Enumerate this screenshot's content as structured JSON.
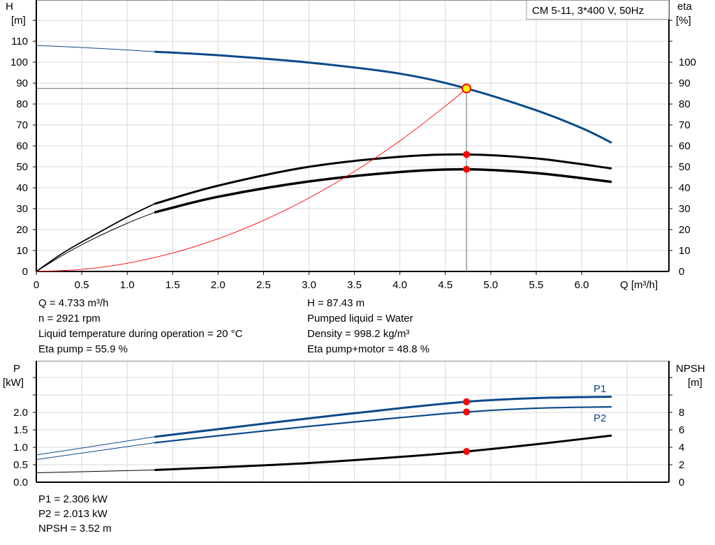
{
  "chart_data": [
    {
      "type": "line",
      "title": "CM 5-11, 3*400 V, 50Hz",
      "xlabel": "Q [m³/h]",
      "ylabel_left": [
        "H",
        "[m]"
      ],
      "ylabel_right": [
        "eta",
        "[%]"
      ],
      "xlim": [
        0,
        6.96
      ],
      "ylim_left": [
        0,
        129.7
      ],
      "ylim_right": [
        0,
        129.7
      ],
      "grid": true,
      "x_ticks": [
        "0",
        "0.5",
        "1.0",
        "1.5",
        "2.0",
        "2.5",
        "3.0",
        "3.5",
        "4.0",
        "4.5",
        "5.0",
        "5.5",
        "6.0"
      ],
      "y_ticks_left": [
        "0",
        "10",
        "20",
        "30",
        "40",
        "50",
        "60",
        "70",
        "80",
        "90",
        "100",
        "110"
      ],
      "y_ticks_right": [
        "0",
        "10",
        "20",
        "30",
        "40",
        "50",
        "60",
        "70",
        "80",
        "90",
        "100"
      ],
      "series": [
        {
          "key": "H",
          "color": "#0a4a8a",
          "thick_from": 1.3,
          "points": [
            [
              0,
              108
            ],
            [
              0.5,
              107
            ],
            [
              1.0,
              105.8
            ],
            [
              1.3,
              105
            ],
            [
              2.0,
              103.3
            ],
            [
              3.0,
              99.8
            ],
            [
              4.0,
              94.5
            ],
            [
              4.733,
              87.43
            ],
            [
              5.5,
              77
            ],
            [
              6.0,
              68.5
            ],
            [
              6.33,
              61.5
            ]
          ]
        },
        {
          "key": "eta_pump",
          "color": "#000000",
          "thick_from": 1.3,
          "thin_width": 1.8,
          "points": [
            [
              0,
              0
            ],
            [
              0.3,
              9
            ],
            [
              0.6,
              16.5
            ],
            [
              1.0,
              26
            ],
            [
              1.3,
              32.3
            ],
            [
              2.0,
              41
            ],
            [
              3.0,
              50
            ],
            [
              4.0,
              54.8
            ],
            [
              4.733,
              55.9
            ],
            [
              5.5,
              54
            ],
            [
              6.33,
              49.2
            ]
          ]
        },
        {
          "key": "eta_pump_motor",
          "color": "#000000",
          "thick_from": 1.3,
          "thick_width": 3.5,
          "points": [
            [
              0,
              0
            ],
            [
              0.3,
              8
            ],
            [
              0.6,
              15
            ],
            [
              1.0,
              23
            ],
            [
              1.3,
              28.2
            ],
            [
              2.0,
              35.7
            ],
            [
              3.0,
              43
            ],
            [
              4.0,
              47.5
            ],
            [
              4.733,
              48.8
            ],
            [
              5.5,
              47
            ],
            [
              6.33,
              42.8
            ]
          ]
        },
        {
          "key": "system_curve",
          "color": "#ff0000",
          "thin_only": true,
          "points": [
            [
              0,
              0
            ],
            [
              0.5,
              0.98
            ],
            [
              1.0,
              3.9
            ],
            [
              1.5,
              8.8
            ],
            [
              2.0,
              15.6
            ],
            [
              2.5,
              24.4
            ],
            [
              3.0,
              35.1
            ],
            [
              3.5,
              47.8
            ],
            [
              4.0,
              62.4
            ],
            [
              4.5,
              79
            ],
            [
              4.733,
              87.43
            ]
          ]
        }
      ],
      "operating_point": {
        "Q": 4.733,
        "H": 87.43,
        "eta_pump": 55.9,
        "eta_pump_motor": 48.8
      }
    },
    {
      "type": "line",
      "xlim": [
        0,
        6.96
      ],
      "ylabel_left": [
        "P",
        "[kW]"
      ],
      "ylabel_right": [
        "NPSH",
        "[m]"
      ],
      "ylim_left": [
        0,
        3.48
      ],
      "ylim_right": [
        0,
        13.92
      ],
      "grid": true,
      "y_ticks_left": [
        "0.0",
        "0.5",
        "1.0",
        "1.5",
        "2.0"
      ],
      "y_ticks_right": [
        "0",
        "2",
        "4",
        "6",
        "8"
      ],
      "series": [
        {
          "key": "P1",
          "name": "P1",
          "color": "#0a4a8a",
          "axis": "left",
          "thick_from": 1.3,
          "points": [
            [
              0,
              0.78
            ],
            [
              1.3,
              1.3
            ],
            [
              2.0,
              1.52
            ],
            [
              3.0,
              1.83
            ],
            [
              4.0,
              2.12
            ],
            [
              4.733,
              2.306
            ],
            [
              5.5,
              2.41
            ],
            [
              6.33,
              2.45
            ]
          ]
        },
        {
          "key": "P2",
          "name": "P2",
          "color": "#0a4a8a",
          "axis": "left",
          "thick_from": 1.3,
          "thick_width": 2.2,
          "points": [
            [
              0,
              0.65
            ],
            [
              1.3,
              1.13
            ],
            [
              2.0,
              1.33
            ],
            [
              3.0,
              1.6
            ],
            [
              4.0,
              1.85
            ],
            [
              4.733,
              2.013
            ],
            [
              5.5,
              2.12
            ],
            [
              6.33,
              2.16
            ]
          ]
        },
        {
          "key": "NPSH",
          "color": "#000000",
          "axis": "right",
          "thick_from": 1.3,
          "points": [
            [
              0,
              1.08
            ],
            [
              1.3,
              1.4
            ],
            [
              2.0,
              1.7
            ],
            [
              3.0,
              2.2
            ],
            [
              4.0,
              2.9
            ],
            [
              4.733,
              3.52
            ],
            [
              5.5,
              4.35
            ],
            [
              6.33,
              5.35
            ]
          ]
        }
      ],
      "operating_point": {
        "Q": 4.733,
        "P1": 2.306,
        "P2": 2.013,
        "NPSH": 3.52
      }
    }
  ],
  "info_top": {
    "left": [
      "Q = 4.733 m³/h",
      "n = 2921 rpm",
      "Liquid temperature during operation = 20 °C",
      "Eta pump = 55.9 %"
    ],
    "right": [
      "H = 87.43 m",
      "Pumped liquid = Water",
      "Density = 998.2 kg/m³",
      "Eta pump+motor = 48.8 %"
    ]
  },
  "info_bottom": [
    "P1 = 2.306 kW",
    "P2 = 2.013 kW",
    "NPSH = 3.52 m"
  ],
  "colors": {
    "grid": "#d8d8d8",
    "blue": "#0a4a8a",
    "point": "#ff0000",
    "op_point_fill": "#ffff00"
  }
}
